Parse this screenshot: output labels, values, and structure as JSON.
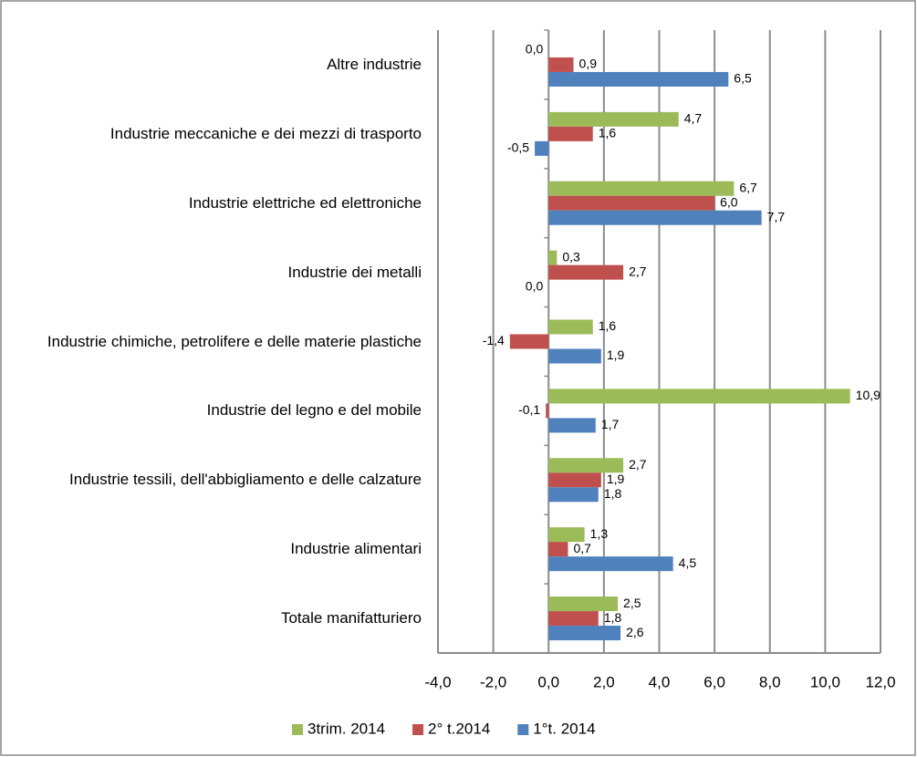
{
  "chart_data": {
    "type": "bar",
    "orientation": "horizontal",
    "categories": [
      "Altre industrie",
      "Industrie meccaniche e dei mezzi di trasporto",
      "Industrie elettriche ed elettroniche",
      "Industrie dei metalli",
      "Industrie chimiche, petrolifere e delle materie plastiche",
      "Industrie del legno e del mobile",
      "Industrie tessili, dell'abbigliamento e delle calzature",
      "Industrie alimentari",
      "Totale manifatturiero"
    ],
    "series": [
      {
        "name": "3trim. 2014",
        "color": "#9bbb59",
        "values": [
          0.0,
          4.7,
          6.7,
          0.3,
          1.6,
          10.9,
          2.7,
          1.3,
          2.5
        ],
        "value_labels": [
          "0,0",
          "4,7",
          "6,7",
          "0,3",
          "1,6",
          "10,9",
          "2,7",
          "1,3",
          "2,5"
        ]
      },
      {
        "name": "2° t.2014",
        "color": "#c0504d",
        "values": [
          0.9,
          1.6,
          6.0,
          2.7,
          -1.4,
          -0.1,
          1.9,
          0.7,
          1.8
        ],
        "value_labels": [
          "0,9",
          "1,6",
          "6,0",
          "2,7",
          "-1,4",
          "-0,1",
          "1,9",
          "0,7",
          "1,8"
        ]
      },
      {
        "name": "1°t. 2014",
        "color": "#4f81bd",
        "values": [
          6.5,
          -0.5,
          7.7,
          0.0,
          1.9,
          1.7,
          1.8,
          4.5,
          2.6
        ],
        "value_labels": [
          "6,5",
          "-0,5",
          "7,7",
          "0,0",
          "1,9",
          "1,7",
          "1,8",
          "4,5",
          "2,6"
        ]
      }
    ],
    "xlim": [
      -4,
      12
    ],
    "xticks": [
      {
        "value": -4,
        "label": "-4,0"
      },
      {
        "value": -2,
        "label": "-2,0"
      },
      {
        "value": 0,
        "label": "0,0"
      },
      {
        "value": 2,
        "label": "2,0"
      },
      {
        "value": 4,
        "label": "4,0"
      },
      {
        "value": 6,
        "label": "6,0"
      },
      {
        "value": 8,
        "label": "8,0"
      },
      {
        "value": 10,
        "label": "10,0"
      },
      {
        "value": 12,
        "label": "12,0"
      }
    ],
    "grid": true,
    "legend": "bottom"
  }
}
